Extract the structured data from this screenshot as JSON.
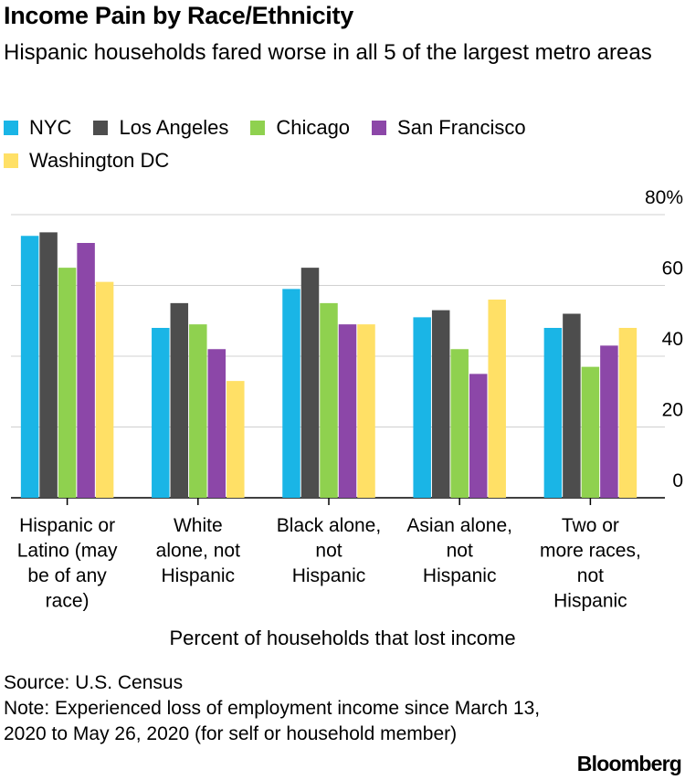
{
  "title": "Income Pain by Race/Ethnicity",
  "subtitle": "Hispanic households fared worse in all 5 of the largest metro areas",
  "source": "Source: U.S. Census",
  "note": "Note: Experienced loss of employment income since March 13, 2020 to May 26, 2020 (for self or household member)",
  "logo": "Bloomberg",
  "chart_data": {
    "type": "bar",
    "title": "Income Pain by Race/Ethnicity",
    "xlabel": "Percent of households that lost income",
    "ylabel": "",
    "ylim": [
      0,
      80
    ],
    "yticks": [
      "0",
      "20",
      "40",
      "60",
      "80%"
    ],
    "grid": true,
    "legend_position": "top",
    "categories": [
      [
        "Hispanic or",
        "Latino (may",
        "be of any",
        "race)"
      ],
      [
        "White",
        "alone, not",
        "Hispanic"
      ],
      [
        "Black alone,",
        "not",
        "Hispanic"
      ],
      [
        "Asian alone,",
        "not",
        "Hispanic"
      ],
      [
        "Two or",
        "more races,",
        "not",
        "Hispanic"
      ]
    ],
    "series": [
      {
        "name": "NYC",
        "color": "#1ab5e6",
        "values": [
          74,
          48,
          59,
          51,
          48
        ]
      },
      {
        "name": "Los Angeles",
        "color": "#4d4d4d",
        "values": [
          75,
          55,
          65,
          53,
          52
        ]
      },
      {
        "name": "Chicago",
        "color": "#8fd14f",
        "values": [
          65,
          49,
          55,
          42,
          37
        ]
      },
      {
        "name": "San Francisco",
        "color": "#8c47a8",
        "values": [
          72,
          42,
          49,
          35,
          43
        ]
      },
      {
        "name": "Washington DC",
        "color": "#ffe066",
        "values": [
          61,
          33,
          49,
          56,
          48
        ]
      }
    ]
  }
}
